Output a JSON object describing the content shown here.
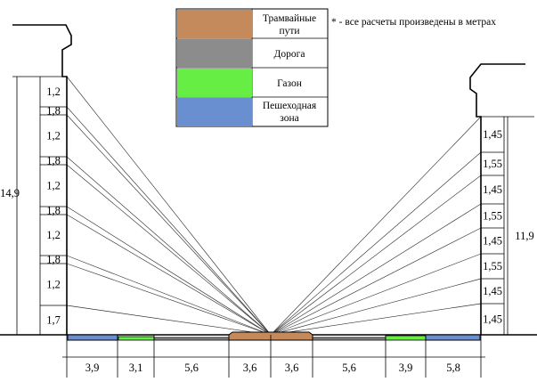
{
  "legend": {
    "items": [
      {
        "name": "tram",
        "lines": [
          "Трамвайные",
          "пути"
        ],
        "color": "#c48a5c"
      },
      {
        "name": "road",
        "lines": [
          "Дорога"
        ],
        "color": "#8c8c8c"
      },
      {
        "name": "lawn",
        "lines": [
          "Газон"
        ],
        "color": "#66ee44"
      },
      {
        "name": "pedestrian",
        "lines": [
          "Пешеходная",
          "зона"
        ],
        "color": "#6a8fd0"
      }
    ]
  },
  "note": "* - все расчеты произведены в метрах",
  "left_building": {
    "floors": [
      "1,2",
      "1,8",
      "1,2",
      "1,8",
      "1,2",
      "1,8",
      "1,2",
      "1,8",
      "1,2",
      "1,7"
    ],
    "total": "14,9"
  },
  "right_building": {
    "floors": [
      "1,45",
      "1,55",
      "1,45",
      "1,55",
      "1,45",
      "1,55",
      "1,45",
      "1,45"
    ],
    "total": "11,9"
  },
  "ground_segments": [
    "3,9",
    "3,1",
    "5,6",
    "3,6",
    "3,6",
    "5,6",
    "3,9",
    "5,8"
  ]
}
